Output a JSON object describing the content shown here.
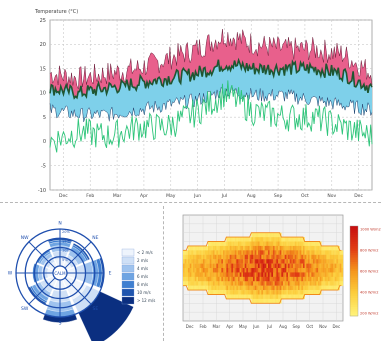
{
  "colors": {
    "temp_band": "#e8608c",
    "precip_band": "#7ed0ea",
    "dewpoint_line": "#2ec57a",
    "temp_line": "#1e5631",
    "wind_ring": "#1f4fae",
    "heat_low": "#ffef70",
    "heat_mid": "#f59a1c",
    "heat_high": "#d41010"
  },
  "chart_data": [
    {
      "type": "line",
      "ylabel": "Temperature (°C)",
      "ylim": [
        -10,
        25
      ],
      "yticks": [
        -10,
        -5,
        0,
        5,
        10,
        15,
        20,
        25
      ],
      "months": [
        "Dec",
        "Feb",
        "Mar",
        "Apr",
        "May",
        "Jun",
        "Jul",
        "Aug",
        "Sep",
        "Oct",
        "Nov",
        "Dec"
      ],
      "grid": true,
      "series": [
        {
          "key": "upper",
          "values": [
            14,
            13,
            14,
            15,
            17,
            19,
            22,
            20,
            19,
            19,
            18,
            14
          ]
        },
        {
          "key": "temp",
          "values": [
            11,
            10,
            11,
            12,
            13,
            14,
            16,
            15,
            15,
            15,
            14,
            11
          ]
        },
        {
          "key": "lower",
          "values": [
            9,
            8,
            8,
            9,
            10,
            11,
            13,
            12,
            12,
            11,
            10,
            9
          ]
        },
        {
          "key": "dew",
          "values": [
            0,
            2,
            1,
            3,
            3,
            6,
            10,
            6,
            5,
            5,
            3,
            1
          ]
        }
      ]
    },
    {
      "type": "polar-bar",
      "directions": [
        "N",
        "NE",
        "E",
        "SE",
        "S",
        "SW",
        "W",
        "NW"
      ],
      "center_label": "CALM",
      "ring_labels": [
        "5%",
        "10%",
        "15%",
        "20%"
      ],
      "series": [
        {
          "name": "< 2 m/s",
          "values": [
            4,
            3,
            5,
            12,
            6,
            4,
            3,
            3
          ]
        },
        {
          "name": "2 m/s",
          "values": [
            4,
            4,
            5,
            10,
            6,
            4,
            3,
            3
          ]
        },
        {
          "name": "4 m/s",
          "values": [
            3,
            3,
            4,
            8,
            5,
            3,
            2,
            2
          ]
        },
        {
          "name": "6 m/s",
          "values": [
            2,
            2,
            3,
            5,
            3,
            2,
            2,
            1
          ]
        },
        {
          "name": "8 m/s",
          "values": [
            1,
            1,
            2,
            3,
            2,
            1,
            1,
            1
          ]
        },
        {
          "name": "10 m/s",
          "values": [
            1,
            1,
            1,
            2,
            1,
            1,
            0,
            0
          ]
        },
        {
          "name": "> 12 m/s",
          "values": [
            0,
            0,
            1,
            1,
            1,
            0,
            0,
            0
          ]
        }
      ]
    },
    {
      "type": "heatmap",
      "months": [
        "Dec",
        "Feb",
        "Mar",
        "Apr",
        "May",
        "Jun",
        "Jul",
        "Aug",
        "Sep",
        "Oct",
        "Nov",
        "Dec"
      ],
      "colorbar_labels": [
        "1000 W/m2",
        "800 W/m2",
        "600 W/m2",
        "400 W/m2",
        "200 W/m2"
      ],
      "max": 1000,
      "monthly_peak": [
        420,
        520,
        640,
        760,
        860,
        940,
        960,
        900,
        800,
        680,
        540,
        420
      ]
    }
  ]
}
